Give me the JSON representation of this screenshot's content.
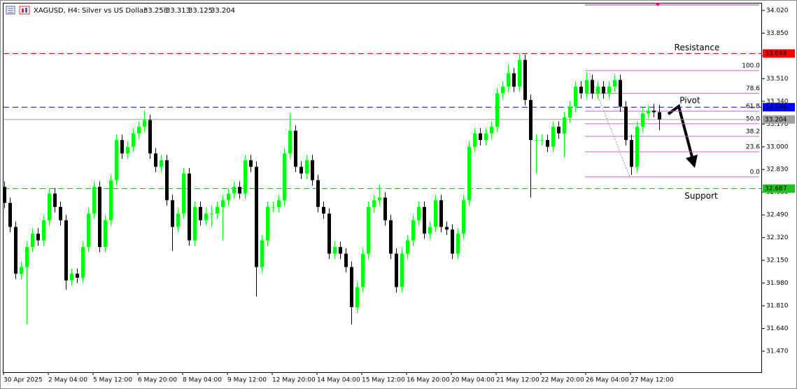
{
  "chart_data": {
    "type": "candlestick",
    "title": "XAGUSD, H4:",
    "subtitle": "Silver vs US Dollar",
    "header_ohlc": [
      33.258,
      33.313,
      33.125,
      33.204
    ],
    "bull_color": "#00ff00",
    "bear_color": "#000000",
    "ylim": [
      31.313,
      34.072
    ],
    "yticks": [
      {
        "value": 34.02,
        "label": "34.020"
      },
      {
        "value": 33.85,
        "label": "33.850"
      },
      {
        "value": 33.68,
        "label": "33.680"
      },
      {
        "value": 33.51,
        "label": "33.510"
      },
      {
        "value": 33.34,
        "label": "33.340"
      },
      {
        "value": 33.17,
        "label": "33.170"
      },
      {
        "value": 33.0,
        "label": "33.000"
      },
      {
        "value": 32.83,
        "label": "32.830"
      },
      {
        "value": 32.66,
        "label": "32.660"
      },
      {
        "value": 32.49,
        "label": "32.490"
      },
      {
        "value": 32.32,
        "label": "32.320"
      },
      {
        "value": 32.15,
        "label": "32.150"
      },
      {
        "value": 31.98,
        "label": "31.980"
      },
      {
        "value": 31.81,
        "label": "31.810"
      },
      {
        "value": 31.64,
        "label": "31.640"
      },
      {
        "value": 31.47,
        "label": "31.470"
      }
    ],
    "categories": [
      "30 Apr 2025",
      null,
      null,
      null,
      null,
      null,
      null,
      null,
      "2 May 04:00",
      null,
      null,
      null,
      null,
      null,
      null,
      null,
      "5 May 12:00",
      null,
      null,
      null,
      null,
      null,
      null,
      null,
      "6 May 20:00",
      null,
      null,
      null,
      null,
      null,
      null,
      null,
      "8 May 04:00",
      null,
      null,
      null,
      null,
      null,
      null,
      null,
      "9 May 12:00",
      null,
      null,
      null,
      null,
      null,
      null,
      null,
      "12 May 20:00",
      null,
      null,
      null,
      null,
      null,
      null,
      null,
      "14 May 04:00",
      null,
      null,
      null,
      null,
      null,
      null,
      null,
      "15 May 12:00",
      null,
      null,
      null,
      null,
      null,
      null,
      null,
      "16 May 20:00",
      null,
      null,
      null,
      null,
      null,
      null,
      null,
      "20 May 04:00",
      null,
      null,
      null,
      null,
      null,
      null,
      null,
      "21 May 12:00",
      null,
      null,
      null,
      null,
      null,
      null,
      null,
      "22 May 20:00",
      null,
      null,
      null,
      null,
      null,
      null,
      null,
      "26 May 04:00",
      null,
      null,
      null,
      null,
      null,
      null,
      null,
      "27 May 12:00",
      null,
      null,
      null,
      null,
      null
    ],
    "ohlc": [
      [
        32.7,
        32.74,
        32.54,
        32.58
      ],
      [
        32.58,
        32.62,
        32.36,
        32.4
      ],
      [
        32.4,
        32.44,
        32.01,
        32.05
      ],
      [
        32.05,
        32.14,
        32.01,
        32.1
      ],
      [
        32.1,
        32.29,
        31.67,
        32.25
      ],
      [
        32.25,
        32.39,
        32.21,
        32.35
      ],
      [
        32.35,
        32.39,
        32.26,
        32.3
      ],
      [
        32.3,
        32.49,
        32.26,
        32.45
      ],
      [
        32.45,
        32.69,
        32.41,
        32.65
      ],
      [
        32.65,
        32.69,
        32.51,
        32.55
      ],
      [
        32.55,
        32.59,
        32.41,
        32.45
      ],
      [
        32.45,
        32.49,
        31.93,
        32.0
      ],
      [
        32.0,
        32.09,
        31.96,
        32.05
      ],
      [
        32.05,
        32.09,
        31.98,
        32.02
      ],
      [
        32.02,
        32.29,
        31.98,
        32.25
      ],
      [
        32.25,
        32.54,
        32.21,
        32.5
      ],
      [
        32.5,
        32.74,
        32.46,
        32.7
      ],
      [
        32.7,
        32.74,
        32.21,
        32.25
      ],
      [
        32.25,
        32.49,
        32.21,
        32.45
      ],
      [
        32.45,
        32.79,
        32.41,
        32.75
      ],
      [
        32.75,
        33.09,
        32.71,
        33.05
      ],
      [
        33.05,
        33.09,
        32.91,
        32.95
      ],
      [
        32.95,
        33.04,
        32.91,
        33.0
      ],
      [
        33.0,
        33.14,
        32.96,
        33.1
      ],
      [
        33.1,
        33.19,
        33.06,
        33.15
      ],
      [
        33.15,
        33.27,
        33.11,
        33.2
      ],
      [
        33.2,
        33.24,
        32.91,
        32.95
      ],
      [
        32.95,
        32.99,
        32.81,
        32.85
      ],
      [
        32.85,
        32.94,
        32.81,
        32.9
      ],
      [
        32.9,
        32.94,
        32.56,
        32.6
      ],
      [
        32.6,
        32.64,
        32.22,
        32.4
      ],
      [
        32.4,
        32.54,
        32.36,
        32.5
      ],
      [
        32.5,
        32.84,
        32.46,
        32.8
      ],
      [
        32.8,
        32.84,
        32.26,
        32.3
      ],
      [
        32.3,
        32.59,
        32.26,
        32.55
      ],
      [
        32.55,
        32.59,
        32.41,
        32.45
      ],
      [
        32.45,
        32.54,
        32.41,
        32.5
      ],
      [
        32.5,
        32.56,
        32.4,
        32.5
      ],
      [
        32.5,
        32.59,
        32.46,
        32.55
      ],
      [
        32.55,
        32.64,
        32.3,
        32.6
      ],
      [
        32.6,
        32.69,
        32.56,
        32.65
      ],
      [
        32.65,
        32.74,
        32.61,
        32.7
      ],
      [
        32.7,
        32.74,
        32.61,
        32.65
      ],
      [
        32.65,
        32.94,
        32.61,
        32.9
      ],
      [
        32.9,
        32.94,
        32.81,
        32.85
      ],
      [
        32.85,
        32.89,
        31.88,
        32.1
      ],
      [
        32.1,
        32.34,
        32.06,
        32.3
      ],
      [
        32.3,
        32.59,
        32.26,
        32.55
      ],
      [
        32.55,
        32.59,
        32.51,
        32.55
      ],
      [
        32.55,
        32.64,
        32.51,
        32.6
      ],
      [
        32.6,
        32.99,
        32.56,
        32.95
      ],
      [
        32.95,
        33.25,
        32.91,
        33.12
      ],
      [
        33.12,
        33.16,
        32.81,
        32.85
      ],
      [
        32.85,
        32.89,
        32.76,
        32.8
      ],
      [
        32.8,
        32.94,
        32.76,
        32.9
      ],
      [
        32.9,
        32.94,
        32.71,
        32.75
      ],
      [
        32.75,
        32.79,
        32.51,
        32.55
      ],
      [
        32.55,
        32.59,
        32.46,
        32.5
      ],
      [
        32.5,
        32.54,
        32.16,
        32.2
      ],
      [
        32.2,
        32.29,
        32.16,
        32.25
      ],
      [
        32.25,
        32.29,
        32.16,
        32.2
      ],
      [
        32.2,
        32.24,
        32.06,
        32.1
      ],
      [
        32.1,
        32.14,
        31.67,
        31.8
      ],
      [
        31.8,
        31.99,
        31.76,
        31.95
      ],
      [
        31.95,
        32.24,
        31.91,
        32.2
      ],
      [
        32.2,
        32.59,
        32.16,
        32.55
      ],
      [
        32.55,
        32.64,
        32.51,
        32.6
      ],
      [
        32.6,
        32.72,
        32.56,
        32.62
      ],
      [
        32.62,
        32.66,
        32.41,
        32.45
      ],
      [
        32.45,
        32.49,
        32.16,
        32.2
      ],
      [
        32.2,
        32.24,
        31.91,
        31.95
      ],
      [
        31.95,
        32.24,
        31.91,
        32.2
      ],
      [
        32.2,
        32.34,
        32.16,
        32.3
      ],
      [
        32.3,
        32.49,
        32.26,
        32.45
      ],
      [
        32.45,
        32.59,
        32.41,
        32.55
      ],
      [
        32.55,
        32.59,
        32.31,
        32.35
      ],
      [
        32.35,
        32.44,
        32.31,
        32.4
      ],
      [
        32.4,
        32.64,
        32.36,
        32.6
      ],
      [
        32.6,
        32.64,
        32.36,
        32.4
      ],
      [
        32.4,
        32.44,
        32.34,
        32.38
      ],
      [
        32.38,
        32.42,
        32.16,
        32.2
      ],
      [
        32.2,
        32.39,
        32.16,
        32.35
      ],
      [
        32.35,
        32.64,
        32.31,
        32.6
      ],
      [
        32.6,
        33.04,
        32.56,
        33.0
      ],
      [
        33.0,
        33.14,
        32.96,
        33.1
      ],
      [
        33.1,
        33.14,
        33.01,
        33.05
      ],
      [
        33.05,
        33.14,
        33.01,
        33.1
      ],
      [
        33.1,
        33.19,
        33.06,
        33.15
      ],
      [
        33.15,
        33.44,
        33.11,
        33.4
      ],
      [
        33.4,
        33.49,
        33.36,
        33.45
      ],
      [
        33.45,
        33.62,
        33.41,
        33.55
      ],
      [
        33.55,
        33.59,
        33.41,
        33.45
      ],
      [
        33.45,
        33.7,
        33.41,
        33.65
      ],
      [
        33.65,
        33.69,
        33.31,
        33.35
      ],
      [
        33.35,
        33.39,
        32.62,
        33.05
      ],
      [
        33.05,
        33.09,
        32.8,
        33.05
      ],
      [
        33.05,
        33.09,
        33.01,
        33.05
      ],
      [
        33.05,
        33.09,
        32.96,
        33.0
      ],
      [
        33.0,
        33.19,
        32.96,
        33.15
      ],
      [
        33.15,
        33.19,
        33.06,
        33.1
      ],
      [
        33.1,
        33.26,
        32.92,
        33.22
      ],
      [
        33.22,
        33.34,
        33.18,
        33.3
      ],
      [
        33.3,
        33.49,
        33.26,
        33.45
      ],
      [
        33.45,
        33.49,
        33.36,
        33.4
      ],
      [
        33.4,
        33.56,
        33.36,
        33.5
      ],
      [
        33.5,
        33.54,
        33.36,
        33.4
      ],
      [
        33.4,
        33.49,
        33.36,
        33.45
      ],
      [
        33.45,
        33.49,
        33.36,
        33.4
      ],
      [
        33.4,
        33.49,
        33.36,
        33.45
      ],
      [
        33.45,
        33.54,
        33.41,
        33.5
      ],
      [
        33.5,
        33.54,
        33.26,
        33.3
      ],
      [
        33.3,
        33.34,
        33.01,
        33.05
      ],
      [
        33.05,
        33.09,
        32.79,
        32.85
      ],
      [
        32.85,
        33.19,
        32.81,
        33.15
      ],
      [
        33.15,
        33.29,
        33.11,
        33.25
      ],
      [
        33.25,
        33.31,
        33.21,
        33.27
      ],
      [
        33.27,
        33.32,
        33.22,
        33.258
      ],
      [
        33.258,
        33.313,
        33.125,
        33.204
      ]
    ],
    "levels": [
      {
        "name": "Resistance",
        "value": 33.698,
        "color": "#ff0000",
        "dash": true
      },
      {
        "name": "Pivot",
        "value": 33.296,
        "color": "#0000ff",
        "dash": true
      },
      {
        "name": "Support",
        "value": 32.687,
        "color": "#1fc01f",
        "dash": true
      }
    ],
    "current_price": {
      "value": 33.204,
      "color": "#a0a0a0"
    },
    "fibonacci": {
      "high": 33.57,
      "low": 32.774,
      "color": "#cc66cc",
      "levels": [
        {
          "value": 100,
          "label": "100.0"
        },
        78.6,
        61.8,
        {
          "value": 50,
          "label": "50.0"
        },
        38.2,
        23.6,
        {
          "value": 0,
          "label": "0.0"
        }
      ]
    }
  }
}
